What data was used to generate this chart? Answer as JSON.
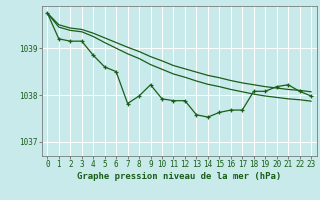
{
  "background_color": "#c8eaea",
  "plot_bg_color": "#c8eaea",
  "grid_color": "#ffffff",
  "line_color": "#1a5e1a",
  "xlabel": "Graphe pression niveau de la mer (hPa)",
  "xlabel_fontsize": 6.5,
  "xlabel_color": "#1a5e1a",
  "tick_color": "#1a5e1a",
  "tick_fontsize": 5.5,
  "ylim": [
    1036.7,
    1039.9
  ],
  "xlim": [
    -0.5,
    23.5
  ],
  "yticks": [
    1037,
    1038,
    1039
  ],
  "xticks": [
    0,
    1,
    2,
    3,
    4,
    5,
    6,
    7,
    8,
    9,
    10,
    11,
    12,
    13,
    14,
    15,
    16,
    17,
    18,
    19,
    20,
    21,
    22,
    23
  ],
  "series1": [
    1039.75,
    1039.2,
    1039.15,
    1039.15,
    1038.85,
    1038.6,
    1038.5,
    1037.82,
    1037.98,
    1038.22,
    1037.92,
    1037.88,
    1037.88,
    1037.58,
    1037.53,
    1037.63,
    1037.68,
    1037.68,
    1038.08,
    1038.08,
    1038.18,
    1038.22,
    1038.08,
    1037.98
  ],
  "series2": [
    1039.75,
    1039.45,
    1039.38,
    1039.35,
    1039.25,
    1039.12,
    1039.0,
    1038.88,
    1038.78,
    1038.65,
    1038.55,
    1038.45,
    1038.38,
    1038.3,
    1038.23,
    1038.18,
    1038.12,
    1038.07,
    1038.02,
    1037.98,
    1037.95,
    1037.92,
    1037.9,
    1037.87
  ],
  "series3": [
    1039.75,
    1039.5,
    1039.43,
    1039.4,
    1039.32,
    1039.22,
    1039.12,
    1039.02,
    1038.93,
    1038.82,
    1038.73,
    1038.63,
    1038.56,
    1038.49,
    1038.42,
    1038.37,
    1038.31,
    1038.26,
    1038.22,
    1038.18,
    1038.15,
    1038.12,
    1038.1,
    1038.07
  ]
}
